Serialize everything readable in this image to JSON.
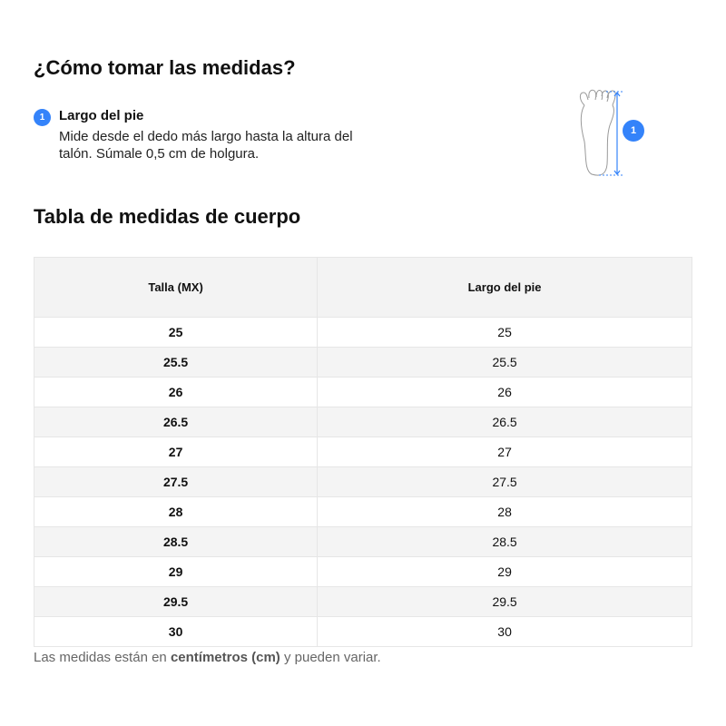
{
  "title": "¿Cómo tomar las medidas?",
  "step": {
    "number": "1",
    "title": "Largo del pie",
    "description": "Mide desde el dedo más largo hasta la altura del talón. Súmale 0,5 cm de holgura."
  },
  "illustration": {
    "icon": "foot-length-icon",
    "badge": "1",
    "accent": "#3483fa"
  },
  "table_title": "Tabla de medidas de cuerpo",
  "table": {
    "headers": [
      "Talla (MX)",
      "Largo del pie"
    ],
    "rows": [
      [
        "25",
        "25"
      ],
      [
        "25.5",
        "25.5"
      ],
      [
        "26",
        "26"
      ],
      [
        "26.5",
        "26.5"
      ],
      [
        "27",
        "27"
      ],
      [
        "27.5",
        "27.5"
      ],
      [
        "28",
        "28"
      ],
      [
        "28.5",
        "28.5"
      ],
      [
        "29",
        "29"
      ],
      [
        "29.5",
        "29.5"
      ],
      [
        "30",
        "30"
      ]
    ]
  },
  "note": {
    "before": "Las medidas están en ",
    "bold": "centímetros (cm)",
    "after": " y pueden variar."
  }
}
